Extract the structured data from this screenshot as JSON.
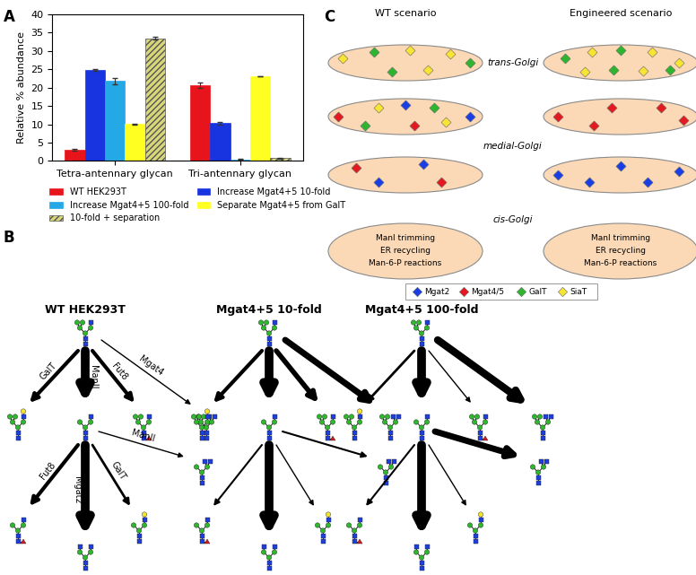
{
  "chart_data": {
    "type": "bar",
    "label": "A",
    "categories": [
      "Tetra-antennary glycan",
      "Tri-antennary glycan"
    ],
    "ylabel": "Relative % abundance",
    "ylim": [
      0,
      40
    ],
    "yticks": [
      0,
      5,
      10,
      15,
      20,
      25,
      30,
      35,
      40
    ],
    "grid": false,
    "legend": "bottom",
    "series": [
      {
        "name": "WT HEK293T",
        "color": "#e8141c",
        "values": [
          3.0,
          20.7
        ],
        "errors": [
          0.3,
          0.7
        ]
      },
      {
        "name": "Increase Mgat4+5 10-fold",
        "color": "#1834e0",
        "values": [
          24.8,
          10.3
        ],
        "errors": [
          0.2,
          0.3
        ]
      },
      {
        "name": "Increase Mgat4+5 100-fold",
        "color": "#25a9e6",
        "values": [
          21.8,
          0.4
        ],
        "errors": [
          0.8,
          0.1
        ]
      },
      {
        "name": "Separate Mgat4+5 from GalT",
        "color": "#ffff22",
        "values": [
          10.1,
          23.1
        ],
        "errors": [
          0.1,
          0.1
        ]
      },
      {
        "name": "10-fold + separation",
        "color": "#d9d77a",
        "values": [
          33.5,
          0.8
        ],
        "errors": [
          0.3,
          0.1
        ]
      }
    ]
  },
  "pathway_diagram": {
    "label": "B",
    "panels": [
      {
        "title": "WT HEK293T",
        "step1_enzymes": [
          "GalT",
          "ManII",
          "Fut8",
          "Mgat4"
        ],
        "step2_enzymes": [
          "Fut8",
          "Mgat2",
          "GalT",
          "ManII"
        ]
      },
      {
        "title": "Mgat4+5 10-fold"
      },
      {
        "title": "Mgat4+5 100-fold"
      }
    ]
  },
  "golgi_diagram": {
    "label": "C",
    "scenarios": [
      "WT scenario",
      "Engineered scenario"
    ],
    "compartments": [
      "trans-Golgi",
      "medial-Golgi",
      "cis-Golgi"
    ],
    "cis_text": [
      "ManI trimming",
      "ER recycling",
      "Man-6-P reactions"
    ],
    "legend": [
      {
        "name": "Mgat2",
        "color": "#1a3ee6"
      },
      {
        "name": "Mgat4/5",
        "color": "#e3191f"
      },
      {
        "name": "GalT",
        "color": "#2db52d"
      },
      {
        "name": "SiaT",
        "color": "#f7e433"
      }
    ]
  }
}
